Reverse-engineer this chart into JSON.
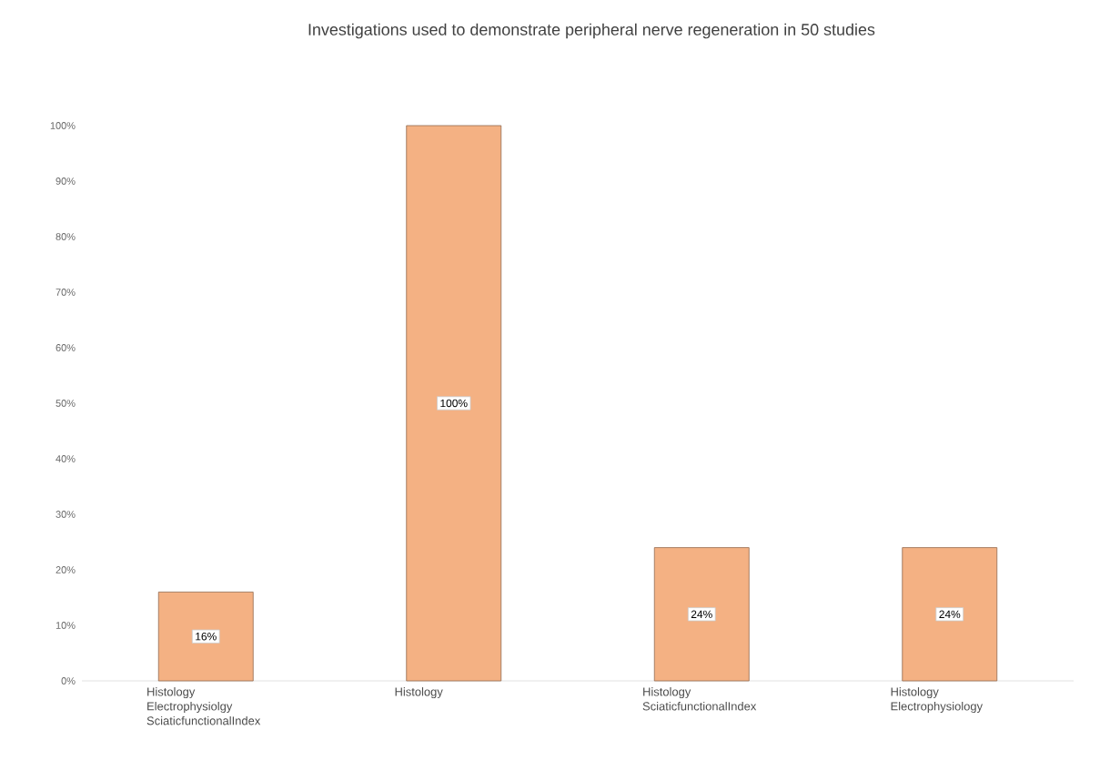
{
  "chart_data": {
    "type": "bar",
    "title": "Investigations used to demonstrate peripheral nerve regeneration in 50 studies",
    "categories": [
      "Histology Electrophysiolgy SciaticfunctionalIndex",
      "Histology",
      "Histology SciaticfunctionalIndex",
      "Histology Electrophysiology"
    ],
    "values": [
      16,
      100,
      24,
      24
    ],
    "value_labels": [
      "16%",
      "100%",
      "24%",
      "24%"
    ],
    "color": "#f4b183",
    "ylim": [
      0,
      100
    ],
    "yticks": [
      {
        "value": 0,
        "label": "0%"
      },
      {
        "value": 10,
        "label": "10%"
      },
      {
        "value": 20,
        "label": "20%"
      },
      {
        "value": 30,
        "label": "30%"
      },
      {
        "value": 40,
        "label": "40%"
      },
      {
        "value": 50,
        "label": "50%"
      },
      {
        "value": 60,
        "label": "60%"
      },
      {
        "value": 70,
        "label": "70%"
      },
      {
        "value": 80,
        "label": "80%"
      },
      {
        "value": 90,
        "label": "90%"
      },
      {
        "value": 100,
        "label": "100%"
      }
    ]
  }
}
